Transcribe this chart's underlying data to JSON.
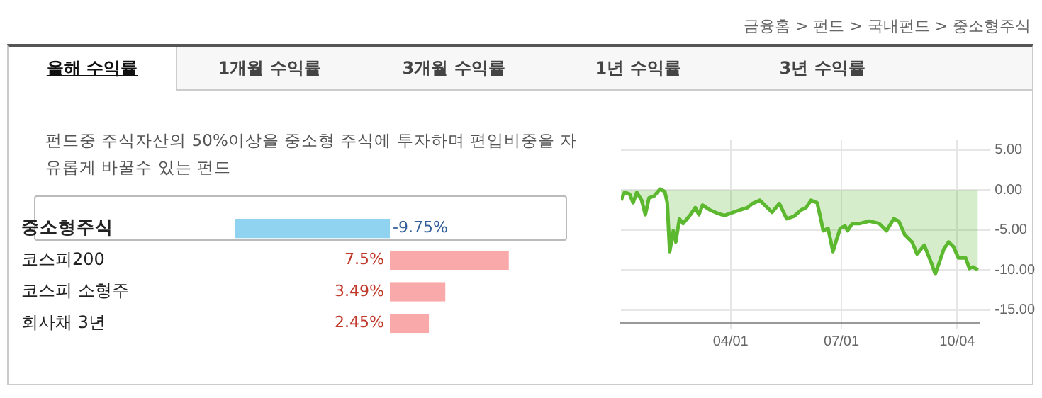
{
  "chart_data": [
    {
      "type": "other",
      "annotations": [
        "금융홈 > 펀드 > 국내펀드 > 중소형주식",
        "올해 수익률",
        "1개월 수익률",
        "3개월 수익률",
        "1년 수익률",
        "3년 수익률"
      ]
    },
    {
      "type": "bar",
      "orientation": "horizontal",
      "subtitle": "펀드중 주식자산의 50%이상을 중소형 주식에 투자하며 편입비중을 자유롭게 바꿀수 있는 펀드",
      "categories": [
        "중소형주식",
        "코스피200",
        "코스피 소형주",
        "회사채 3년"
      ],
      "values": [
        -9.75,
        7.5,
        3.49,
        2.45
      ],
      "colors": [
        "#8fd3f0",
        "#f9a9a9",
        "#f9a9a9",
        "#f9a9a9"
      ],
      "value_labels": [
        "-9.75%",
        "7.5%",
        "3.49%",
        "2.45%"
      ],
      "tick_labels": "y"
    },
    {
      "type": "area",
      "color": "#5cb82e",
      "grid": true,
      "xlim": [
        "--01-01",
        "--10-22"
      ],
      "xticks": [
        {
          "value": "--04-01",
          "label": "04/01"
        },
        {
          "value": "--07-01",
          "label": "07/01"
        },
        {
          "value": "--10-04",
          "label": "10/04"
        }
      ],
      "ylim": [
        -16.6,
        6.2
      ],
      "yticks": [
        {
          "value": 5,
          "label": "5.00"
        },
        {
          "value": 0,
          "label": "0.00"
        },
        {
          "value": -5,
          "label": "-5.00"
        },
        {
          "value": -10,
          "label": "-10.00"
        },
        {
          "value": -15,
          "label": "-15.00"
        }
      ],
      "x": [
        "--01-01",
        "--01-04",
        "--01-08",
        "--01-11",
        "--01-14",
        "--01-18",
        "--01-21",
        "--01-24",
        "--01-28",
        "--02-02",
        "--02-06",
        "--02-08",
        "--02-10",
        "--02-13",
        "--02-15",
        "--02-18",
        "--02-21",
        "--02-27",
        "--03-03",
        "--03-06",
        "--03-09",
        "--03-15",
        "--03-21",
        "--03-27",
        "--04-03",
        "--04-09",
        "--04-15",
        "--04-19",
        "--04-25",
        "--05-01",
        "--05-05",
        "--05-11",
        "--05-17",
        "--05-23",
        "--05-29",
        "--06-02",
        "--06-06",
        "--06-11",
        "--06-14",
        "--06-16",
        "--06-20",
        "--06-24",
        "--06-27",
        "--06-30",
        "--07-04",
        "--07-06",
        "--07-10",
        "--07-16",
        "--07-24",
        "--08-01",
        "--08-07",
        "--08-13",
        "--08-17",
        "--08-22",
        "--08-28",
        "--09-01",
        "--09-07",
        "--09-13",
        "--09-16",
        "--09-19",
        "--09-23",
        "--09-27",
        "--10-01",
        "--10-05",
        "--10-11",
        "--10-14",
        "--10-17",
        "--10-21"
      ],
      "values": [
        -1.3,
        -0.3,
        -0.5,
        -1.6,
        -0.3,
        -1.3,
        -3.1,
        -1.0,
        -0.8,
        0.1,
        -0.2,
        -1.6,
        -7.7,
        -5.1,
        -6.5,
        -3.6,
        -4.2,
        -3.1,
        -2.2,
        -3.1,
        -1.9,
        -2.5,
        -2.9,
        -3.2,
        -2.8,
        -2.5,
        -2.2,
        -1.7,
        -1.3,
        -2.2,
        -2.8,
        -1.7,
        -3.6,
        -3.3,
        -2.5,
        -2.2,
        -1.3,
        -1.6,
        -3.6,
        -5.1,
        -4.8,
        -7.7,
        -6.2,
        -4.8,
        -4.5,
        -5.1,
        -4.2,
        -4.2,
        -3.9,
        -4.2,
        -5.1,
        -3.6,
        -3.9,
        -5.6,
        -6.5,
        -8.0,
        -6.9,
        -9.2,
        -10.5,
        -9.2,
        -7.4,
        -6.5,
        -7.1,
        -8.5,
        -8.5,
        -9.8,
        -9.6,
        -10.0
      ]
    }
  ]
}
